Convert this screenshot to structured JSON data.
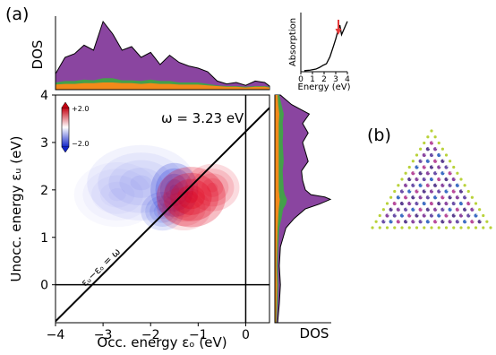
{
  "panel_labels": {
    "a": "(a)",
    "b": "(b)"
  },
  "colors": {
    "purple": "#8a45a0",
    "green": "#44a04a",
    "orange": "#f28a1a",
    "pos": "#e0001a",
    "neg": "#1a2fd8",
    "arrow": "#e33a3a"
  },
  "chart_data": [
    {
      "id": "tcm-map",
      "type": "heatmap",
      "xlabel": "Occ. energy εₒ (eV)",
      "ylabel": "Unocc. energy εᵤ (eV)",
      "xlim": [
        -4,
        0.5
      ],
      "ylim": [
        -0.8,
        4
      ],
      "xticks": [
        -4,
        -3,
        -2,
        -1,
        0
      ],
      "yticks": [
        0,
        1,
        2,
        3,
        4
      ],
      "xtick_labels": [
        "−4",
        "−3",
        "−2",
        "−1",
        "0"
      ],
      "ytick_labels": [
        "0",
        "1",
        "2",
        "3",
        "4"
      ],
      "annotation": "ω = 3.23 eV",
      "omega": 3.23,
      "diagonal_label": "εᵤ−εₒ = ω",
      "colorbar": {
        "max_label": "+2.0",
        "min_label": "−2.0",
        "range": [
          -2,
          2
        ]
      },
      "positive_blobs": [
        {
          "x": -1.15,
          "y": 1.85,
          "sx": 0.32,
          "sy": 0.28,
          "v": 1.0
        },
        {
          "x": -0.7,
          "y": 2.05,
          "sx": 0.25,
          "sy": 0.22,
          "v": 0.55
        },
        {
          "x": -1.3,
          "y": 1.6,
          "sx": 0.25,
          "sy": 0.2,
          "v": 0.45
        }
      ],
      "negative_blobs": [
        {
          "x": -1.5,
          "y": 2.0,
          "sx": 0.22,
          "sy": 0.25,
          "v": 0.85
        },
        {
          "x": -1.75,
          "y": 1.55,
          "sx": 0.2,
          "sy": 0.18,
          "v": 0.5
        },
        {
          "x": -2.2,
          "y": 2.15,
          "sx": 0.5,
          "sy": 0.35,
          "v": 0.22
        },
        {
          "x": -2.7,
          "y": 1.9,
          "sx": 0.4,
          "sy": 0.3,
          "v": 0.12
        }
      ]
    },
    {
      "id": "dos-top",
      "type": "area",
      "ylabel": "DOS",
      "xlim": [
        -4,
        0.5
      ],
      "x": [
        -4,
        -3.8,
        -3.6,
        -3.4,
        -3.2,
        -3.0,
        -2.8,
        -2.6,
        -2.4,
        -2.2,
        -2.0,
        -1.8,
        -1.6,
        -1.4,
        -1.2,
        -1.0,
        -0.8,
        -0.6,
        -0.4,
        -0.2,
        0,
        0.2,
        0.4,
        0.5
      ],
      "series": [
        {
          "color": "purple",
          "values": [
            0.22,
            0.45,
            0.5,
            0.62,
            0.55,
            0.95,
            0.78,
            0.55,
            0.6,
            0.45,
            0.52,
            0.35,
            0.48,
            0.38,
            0.33,
            0.3,
            0.25,
            0.12,
            0.08,
            0.1,
            0.06,
            0.12,
            0.1,
            0.05
          ]
        },
        {
          "color": "green",
          "values": [
            0.1,
            0.12,
            0.12,
            0.14,
            0.13,
            0.16,
            0.16,
            0.13,
            0.13,
            0.12,
            0.14,
            0.12,
            0.12,
            0.1,
            0.1,
            0.1,
            0.08,
            0.06,
            0.05,
            0.05,
            0.04,
            0.05,
            0.05,
            0.04
          ]
        },
        {
          "color": "orange",
          "values": [
            0.07,
            0.08,
            0.08,
            0.09,
            0.09,
            0.1,
            0.1,
            0.09,
            0.09,
            0.08,
            0.09,
            0.08,
            0.08,
            0.07,
            0.07,
            0.07,
            0.06,
            0.05,
            0.04,
            0.04,
            0.03,
            0.04,
            0.04,
            0.03
          ]
        }
      ]
    },
    {
      "id": "dos-right",
      "type": "area",
      "xlabel": "DOS",
      "ylim": [
        -0.8,
        4
      ],
      "y": [
        -0.8,
        -0.4,
        0,
        0.4,
        0.8,
        1.2,
        1.4,
        1.6,
        1.7,
        1.8,
        1.85,
        1.9,
        2.0,
        2.2,
        2.4,
        2.6,
        2.8,
        3.0,
        3.2,
        3.4,
        3.6,
        3.8,
        4.0
      ],
      "series": [
        {
          "color": "purple",
          "values": [
            0.05,
            0.08,
            0.1,
            0.08,
            0.1,
            0.2,
            0.35,
            0.55,
            0.8,
            1.0,
            0.9,
            0.65,
            0.55,
            0.5,
            0.48,
            0.6,
            0.55,
            0.5,
            0.6,
            0.5,
            0.62,
            0.3,
            0.1
          ]
        },
        {
          "color": "green",
          "values": [
            0.03,
            0.05,
            0.06,
            0.05,
            0.06,
            0.08,
            0.12,
            0.15,
            0.2,
            0.22,
            0.2,
            0.18,
            0.16,
            0.15,
            0.14,
            0.16,
            0.15,
            0.14,
            0.15,
            0.14,
            0.16,
            0.12,
            0.08
          ]
        },
        {
          "color": "orange",
          "values": [
            0.02,
            0.03,
            0.04,
            0.03,
            0.04,
            0.05,
            0.06,
            0.07,
            0.08,
            0.09,
            0.08,
            0.08,
            0.07,
            0.07,
            0.07,
            0.07,
            0.07,
            0.07,
            0.07,
            0.07,
            0.08,
            0.06,
            0.05
          ]
        }
      ]
    },
    {
      "id": "absorption",
      "type": "line",
      "xlabel": "Energy (eV)",
      "ylabel": "Absorption",
      "xlim": [
        0,
        4
      ],
      "xticks": [
        0,
        1,
        2,
        3,
        4
      ],
      "xtick_labels": [
        "0",
        "1",
        "2",
        "3",
        "4"
      ],
      "x": [
        0.3,
        0.8,
        1.3,
        1.6,
        1.9,
        2.2,
        2.5,
        2.8,
        3.0,
        3.2,
        3.35,
        3.5,
        3.7,
        4.0
      ],
      "values": [
        0.02,
        0.03,
        0.05,
        0.08,
        0.12,
        0.15,
        0.28,
        0.48,
        0.62,
        0.78,
        0.88,
        0.7,
        0.8,
        0.95
      ],
      "ylim": [
        0,
        1.05
      ],
      "arrow_at": 3.23
    }
  ]
}
